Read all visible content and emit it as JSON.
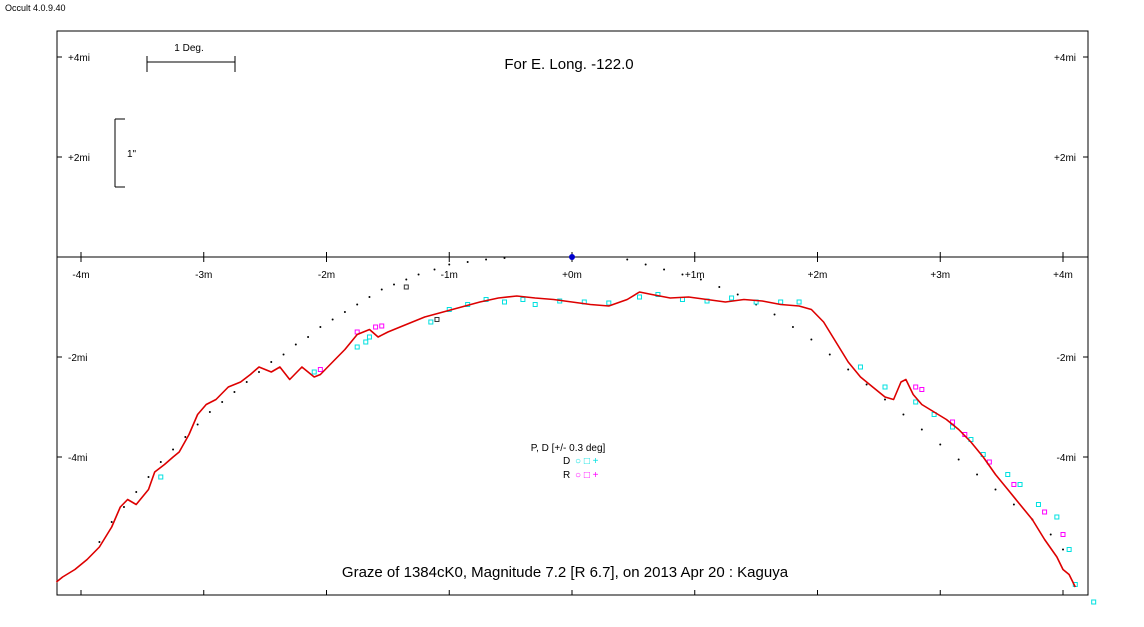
{
  "app": {
    "version": "Occult 4.0.9.40"
  },
  "chart_data": {
    "type": "line",
    "title": "Graze of  1384cK0,  Magnitude 7.2 [R 6.7],  on 2013 Apr 20  :  Kaguya",
    "subtitle": "For E. Long. -122.0",
    "x_ticks": [
      "-4m",
      "-3m",
      "-2m",
      "-1m",
      "+0m",
      "+1m",
      "+2m",
      "+3m",
      "+4m"
    ],
    "x_tick_values": [
      -4,
      -3,
      -2,
      -1,
      0,
      1,
      2,
      3,
      4
    ],
    "y_ticks_left": [
      "+4mi",
      "+2mi",
      "-2mi",
      "-4mi"
    ],
    "y_ticks_right": [
      "+4mi",
      "+2mi",
      "-2mi",
      "-4mi"
    ],
    "y_tick_values": [
      4,
      2,
      -2,
      -4
    ],
    "xlim": [
      -4.2,
      4.1
    ],
    "ylim": [
      -6.75,
      4.55
    ],
    "scale_bar_label": "1 Deg.",
    "arcsec_bar_label": "1\"",
    "legend": {
      "title": "P, D [+/- 0.3 deg]",
      "entries": [
        {
          "label": "D",
          "symbols": "○ □ +",
          "color": "#00e0e0"
        },
        {
          "label": "R",
          "symbols": "○ □ +",
          "color": "#ff00ff"
        }
      ]
    },
    "colors": {
      "profile": "#dd0000",
      "d_events": "#00e0e0",
      "r_events": "#ff00ff",
      "star": "#0000cc",
      "limb_dots": "#000000"
    },
    "star_position": [
      0,
      0
    ],
    "series": [
      {
        "kind": "profile",
        "x": [
          -4.2,
          -4.15,
          -4.05,
          -3.95,
          -3.85,
          -3.75,
          -3.68,
          -3.62,
          -3.55,
          -3.45,
          -3.4,
          -3.32,
          -3.25,
          -3.2,
          -3.12,
          -3.05,
          -2.98,
          -2.9,
          -2.8,
          -2.7,
          -2.62,
          -2.55,
          -2.45,
          -2.38,
          -2.3,
          -2.2,
          -2.1,
          -2.05,
          -1.95,
          -1.85,
          -1.75,
          -1.65,
          -1.58,
          -1.5,
          -1.4,
          -1.3,
          -1.2,
          -1.05,
          -0.9,
          -0.75,
          -0.6,
          -0.45,
          -0.3,
          -0.15,
          0.0,
          0.15,
          0.3,
          0.45,
          0.55,
          0.65,
          0.8,
          0.95,
          1.1,
          1.25,
          1.4,
          1.55,
          1.7,
          1.85,
          1.95,
          2.05,
          2.15,
          2.25,
          2.35,
          2.45,
          2.55,
          2.62,
          2.68,
          2.72,
          2.78,
          2.85,
          2.95,
          3.05,
          3.15,
          3.25,
          3.35,
          3.45,
          3.55,
          3.65,
          3.75,
          3.85,
          3.95,
          4.0,
          4.05,
          4.1
        ],
        "y": [
          -6.5,
          -6.4,
          -6.25,
          -6.05,
          -5.8,
          -5.4,
          -5.0,
          -4.85,
          -4.95,
          -4.65,
          -4.3,
          -4.15,
          -4.0,
          -3.9,
          -3.55,
          -3.15,
          -2.95,
          -2.85,
          -2.6,
          -2.5,
          -2.35,
          -2.2,
          -2.3,
          -2.2,
          -2.45,
          -2.2,
          -2.4,
          -2.35,
          -2.1,
          -1.85,
          -1.55,
          -1.45,
          -1.6,
          -1.5,
          -1.4,
          -1.3,
          -1.2,
          -1.1,
          -1.0,
          -0.9,
          -0.82,
          -0.78,
          -0.82,
          -0.85,
          -0.9,
          -0.95,
          -0.98,
          -0.85,
          -0.7,
          -0.75,
          -0.82,
          -0.8,
          -0.85,
          -0.9,
          -0.85,
          -0.88,
          -0.95,
          -0.98,
          -1.05,
          -1.3,
          -1.7,
          -2.1,
          -2.4,
          -2.6,
          -2.8,
          -2.85,
          -2.5,
          -2.45,
          -2.75,
          -2.95,
          -3.1,
          -3.25,
          -3.45,
          -3.7,
          -4.0,
          -4.35,
          -4.65,
          -4.95,
          -5.25,
          -5.65,
          -6.0,
          -6.25,
          -6.35,
          -6.6
        ]
      },
      {
        "kind": "mean_limb",
        "x": [
          -3.85,
          -3.75,
          -3.65,
          -3.55,
          -3.45,
          -3.35,
          -3.25,
          -3.15,
          -3.05,
          -2.95,
          -2.85,
          -2.75,
          -2.65,
          -2.55,
          -2.45,
          -2.35,
          -2.25,
          -2.15,
          -2.05,
          -1.95,
          -1.85,
          -1.75,
          -1.65,
          -1.55,
          -1.45,
          -1.35,
          -1.25,
          -1.12,
          -1.0,
          -0.85,
          -0.7,
          -0.55,
          0.45,
          0.6,
          0.75,
          0.9,
          1.05,
          1.2,
          1.35,
          1.5,
          1.65,
          1.8,
          1.95,
          2.1,
          2.25,
          2.4,
          2.55,
          2.7,
          2.85,
          3.0,
          3.15,
          3.3,
          3.45,
          3.6,
          3.75,
          3.9,
          4.0
        ],
        "y": [
          -5.7,
          -5.3,
          -5.0,
          -4.7,
          -4.4,
          -4.1,
          -3.85,
          -3.6,
          -3.35,
          -3.1,
          -2.9,
          -2.7,
          -2.5,
          -2.3,
          -2.1,
          -1.95,
          -1.75,
          -1.6,
          -1.4,
          -1.25,
          -1.1,
          -0.95,
          -0.8,
          -0.65,
          -0.55,
          -0.45,
          -0.35,
          -0.25,
          -0.15,
          -0.1,
          -0.05,
          -0.02,
          -0.05,
          -0.15,
          -0.25,
          -0.35,
          -0.45,
          -0.6,
          -0.75,
          -0.95,
          -1.15,
          -1.4,
          -1.65,
          -1.95,
          -2.25,
          -2.55,
          -2.85,
          -3.15,
          -3.45,
          -3.75,
          -4.05,
          -4.35,
          -4.65,
          -4.95,
          -5.25,
          -5.55,
          -5.85
        ]
      },
      {
        "kind": "d_events",
        "x": [
          -3.35,
          -2.1,
          -1.75,
          -1.68,
          -1.65,
          -1.15,
          -1.0,
          -0.85,
          -0.7,
          -0.55,
          -0.4,
          -0.3,
          -0.1,
          0.1,
          0.3,
          0.55,
          0.7,
          0.9,
          1.1,
          1.3,
          1.5,
          1.7,
          1.85,
          2.35,
          2.55,
          2.8,
          2.95,
          3.1,
          3.25,
          3.35,
          3.55,
          3.65,
          3.8,
          3.95,
          4.05,
          4.1,
          4.25
        ],
        "y": [
          -4.4,
          -2.3,
          -1.8,
          -1.7,
          -1.6,
          -1.3,
          -1.05,
          -0.95,
          -0.85,
          -0.9,
          -0.85,
          -0.95,
          -0.88,
          -0.9,
          -0.92,
          -0.8,
          -0.75,
          -0.85,
          -0.88,
          -0.82,
          -0.9,
          -0.9,
          -0.9,
          -2.2,
          -2.6,
          -2.9,
          -3.15,
          -3.4,
          -3.65,
          -3.95,
          -4.35,
          -4.55,
          -4.95,
          -5.2,
          -5.85,
          -6.55,
          -6.9
        ]
      },
      {
        "kind": "r_events",
        "x": [
          -1.6,
          -1.55,
          -2.05,
          -1.75,
          2.8,
          2.85,
          3.1,
          3.2,
          3.4,
          3.6,
          3.85,
          4.0
        ],
        "y": [
          -1.4,
          -1.38,
          -2.25,
          -1.5,
          -2.6,
          -2.65,
          -3.3,
          -3.55,
          -4.1,
          -4.55,
          -5.1,
          -5.55
        ]
      },
      {
        "kind": "other_events",
        "x": [
          -1.35,
          -1.1
        ],
        "y": [
          -0.6,
          -1.25
        ]
      }
    ]
  }
}
